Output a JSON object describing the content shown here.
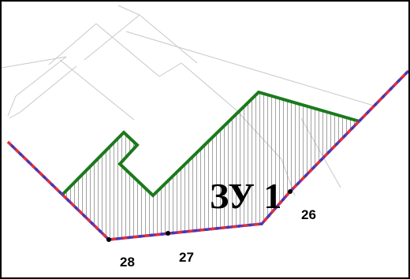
{
  "parcel": {
    "label": "ЗУ 1",
    "outline_color": "#1b7a1b",
    "hatch_color": "#888888"
  },
  "boundary": {
    "color_primary": "#7b2fa0",
    "color_dash": "#e8322a",
    "color_dash_alt": "#2f3fb8"
  },
  "neighbor_lines_color": "#c8c8c8",
  "points": [
    {
      "id": "26"
    },
    {
      "id": "27"
    },
    {
      "id": "28"
    }
  ]
}
